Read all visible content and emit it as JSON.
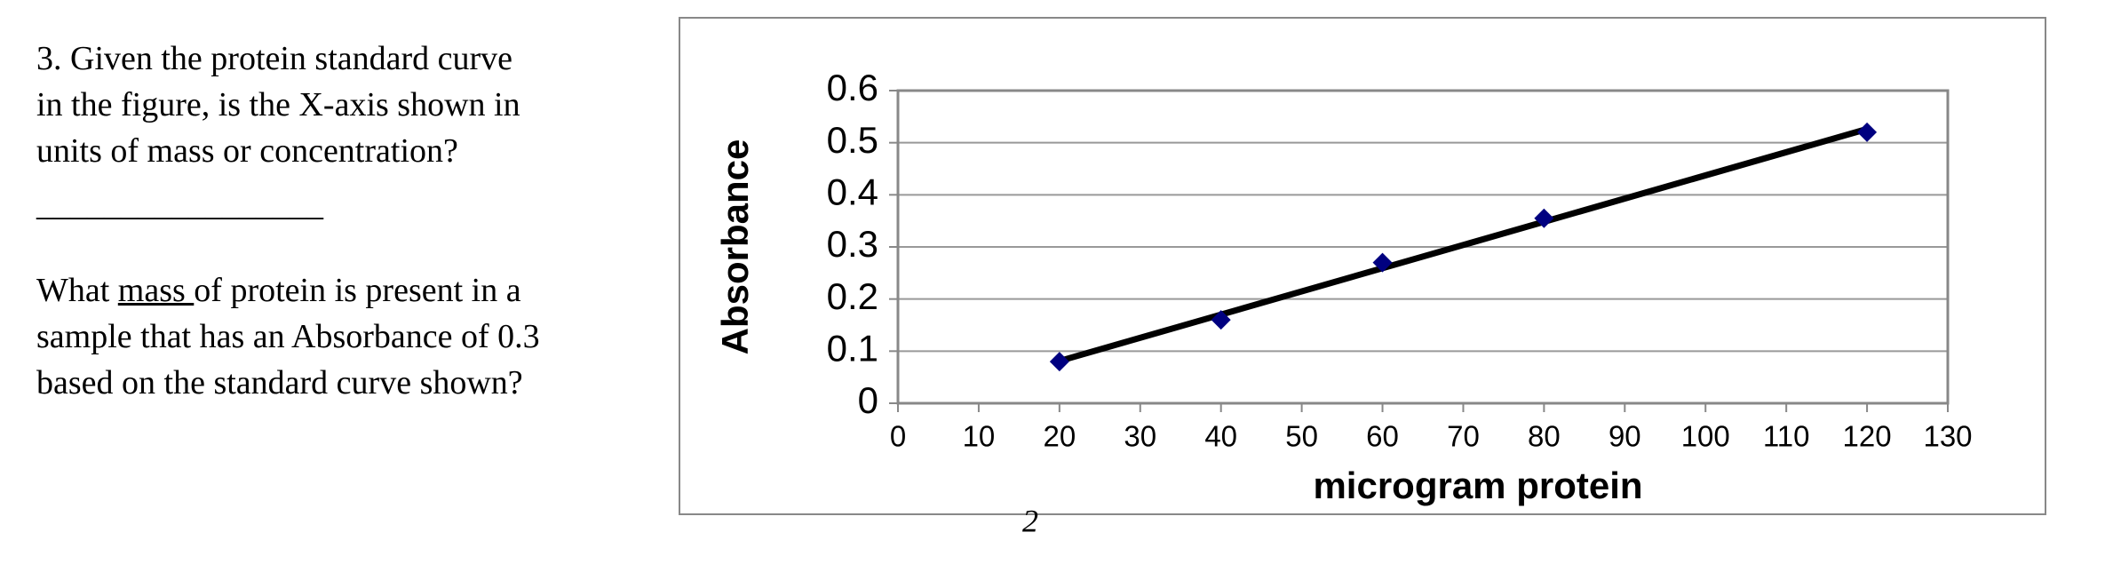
{
  "question": {
    "lines": [
      "3. Given the protein standard curve",
      "in the figure, is the X-axis shown in",
      "units of mass or concentration?"
    ],
    "blank": "_________________",
    "part2": {
      "line1_prefix": "What ",
      "line1_underlined": "mass ",
      "line1_suffix": "of protein is present in a",
      "line2": "sample that has an Absorbance of 0.3",
      "line3": "based on the standard curve shown?"
    }
  },
  "page_number": "2",
  "chart_data": {
    "type": "scatter",
    "x_label": "microgram protein",
    "y_label": "Absorbance",
    "x": [
      20,
      40,
      60,
      80,
      120
    ],
    "values": [
      0.08,
      0.16,
      0.27,
      0.355,
      0.52
    ],
    "color": "#000080",
    "trendline": "linear",
    "trendline_color": "#000000",
    "xlim": [
      0,
      130
    ],
    "xticks": [
      0,
      10,
      20,
      30,
      40,
      50,
      60,
      70,
      80,
      90,
      100,
      110,
      120,
      130
    ],
    "ylim": [
      0,
      0.6
    ],
    "yticks": [
      0,
      0.1,
      0.2,
      0.3,
      0.4,
      0.5,
      0.6
    ],
    "grid": true
  }
}
